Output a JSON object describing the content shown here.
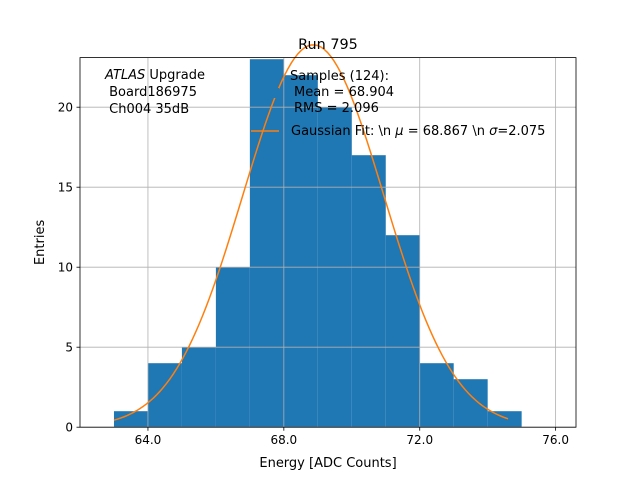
{
  "chart_data": {
    "type": "bar",
    "title": "Run 795",
    "xlabel": "Energy [ADC Counts]",
    "ylabel": "Entries",
    "xlim": [
      62.0,
      76.6
    ],
    "ylim": [
      0,
      23.1
    ],
    "xticks": [
      64.0,
      68.0,
      72.0,
      76.0
    ],
    "xtick_labels": [
      "64.0",
      "68.0",
      "72.0",
      "76.0"
    ],
    "yticks": [
      0,
      5,
      10,
      15,
      20
    ],
    "ytick_labels": [
      "0",
      "5",
      "10",
      "15",
      "20"
    ],
    "grid": true,
    "bin_edges": [
      63,
      64,
      65,
      66,
      67,
      68,
      69,
      70,
      71,
      72,
      73,
      74,
      75
    ],
    "counts": [
      1,
      4,
      5,
      10,
      23,
      22,
      20,
      17,
      12,
      4,
      3,
      1
    ],
    "gaussian_fit": {
      "mu": 68.867,
      "sigma": 2.075,
      "amplitude": 23.9,
      "x_range": [
        63.0,
        74.6
      ]
    },
    "series_colors": {
      "histogram": "#1f77b4",
      "fit": "#ff7f0e"
    },
    "annotation": {
      "line1_italic": "ATLAS",
      "line1_rest": " Upgrade",
      "line2": " Board186975",
      "line3": " Ch004 35dB"
    },
    "legend": {
      "placement": "top-right",
      "histogram_label_lines": [
        "Samples (124):",
        "Mean = 68.904",
        "RMS = 2.096"
      ],
      "fit_label_prefix": "Gaussian Fit: \\n ",
      "fit_label_mu": "μ",
      "fit_label_middle": " = 68.867 \\n ",
      "fit_label_sigma": "σ",
      "fit_label_suffix": "=2.075"
    }
  }
}
